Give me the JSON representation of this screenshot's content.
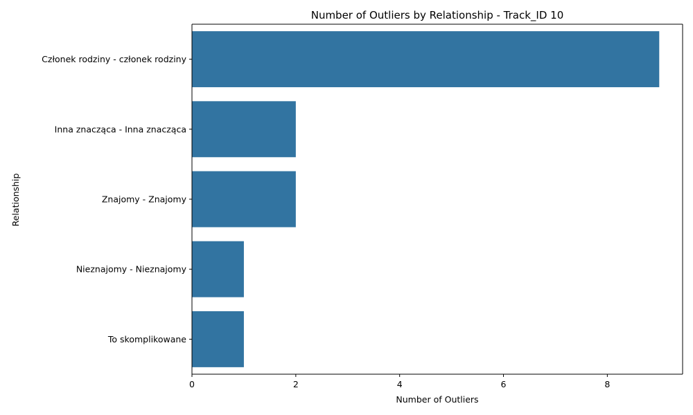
{
  "chart_data": {
    "type": "bar",
    "orientation": "horizontal",
    "title": "Number of Outliers by Relationship - Track_ID 10",
    "xlabel": "Number of Outliers",
    "ylabel": "Relationship",
    "categories": [
      "Członek rodziny - członek rodziny",
      "Inna znacząca - Inna znacząca",
      "Znajomy - Znajomy",
      "Nieznajomy - Nieznajomy",
      "To skomplikowane"
    ],
    "values": [
      9,
      2,
      2,
      1,
      1
    ],
    "xlim": [
      0,
      9.45
    ],
    "xticks": [
      0,
      2,
      4,
      6,
      8
    ],
    "bar_color": "#3274a1",
    "grid": false,
    "legend": "none"
  }
}
